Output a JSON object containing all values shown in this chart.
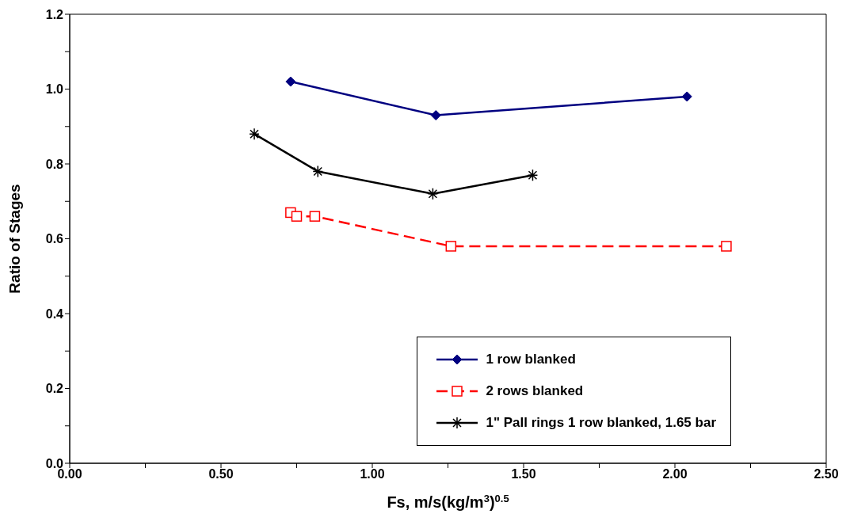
{
  "chart_data": {
    "type": "line",
    "xlabel": "Fs, m/s(kg/m$^{3}$)$^{0.5}$",
    "ylabel": "Ratio of Stages",
    "xlim": [
      0,
      2.5
    ],
    "ylim": [
      0,
      1.2
    ],
    "xticks": [
      {
        "value": 0,
        "label": "0.00"
      },
      {
        "value": 0.25,
        "label": null
      },
      {
        "value": 0.5,
        "label": "0.50"
      },
      {
        "value": 0.75,
        "label": null
      },
      {
        "value": 1,
        "label": "1.00"
      },
      {
        "value": 1.25,
        "label": null
      },
      {
        "value": 1.5,
        "label": "1.50"
      },
      {
        "value": 1.75,
        "label": null
      },
      {
        "value": 2,
        "label": "2.00"
      },
      {
        "value": 2.25,
        "label": null
      },
      {
        "value": 2.5,
        "label": "2.50"
      }
    ],
    "yticks": [
      {
        "value": 0,
        "label": "0.0"
      },
      {
        "value": 0.1,
        "label": null
      },
      {
        "value": 0.2,
        "label": "0.2"
      },
      {
        "value": 0.3,
        "label": null
      },
      {
        "value": 0.4,
        "label": "0.4"
      },
      {
        "value": 0.5,
        "label": null
      },
      {
        "value": 0.6,
        "label": "0.6"
      },
      {
        "value": 0.7,
        "label": null
      },
      {
        "value": 0.8,
        "label": "0.8"
      },
      {
        "value": 0.9,
        "label": null
      },
      {
        "value": 1,
        "label": "1.0"
      },
      {
        "value": 1.1,
        "label": null
      },
      {
        "value": 1.2,
        "label": "1.2"
      }
    ],
    "grid": false,
    "legend": "bottom right",
    "series": [
      {
        "name": "1 row blanked",
        "color": "#000080",
        "marker": "diamond",
        "line_style": "solid",
        "x": [
          0.73,
          1.21,
          2.04
        ],
        "values": [
          1.02,
          0.93,
          0.98
        ]
      },
      {
        "name": "2 rows blanked",
        "color": "#ff0000",
        "marker": "square",
        "line_style": "dashed",
        "x": [
          0.73,
          0.75,
          0.81,
          1.26,
          2.17
        ],
        "values": [
          0.67,
          0.66,
          0.66,
          0.58,
          0.58
        ]
      },
      {
        "name": "1\" Pall rings 1 row blanked, 1.65 bar",
        "color": "#000000",
        "marker": "cross",
        "line_style": "solid",
        "x": [
          0.61,
          0.82,
          1.2,
          1.53
        ],
        "values": [
          0.88,
          0.78,
          0.72,
          0.77
        ]
      }
    ]
  }
}
